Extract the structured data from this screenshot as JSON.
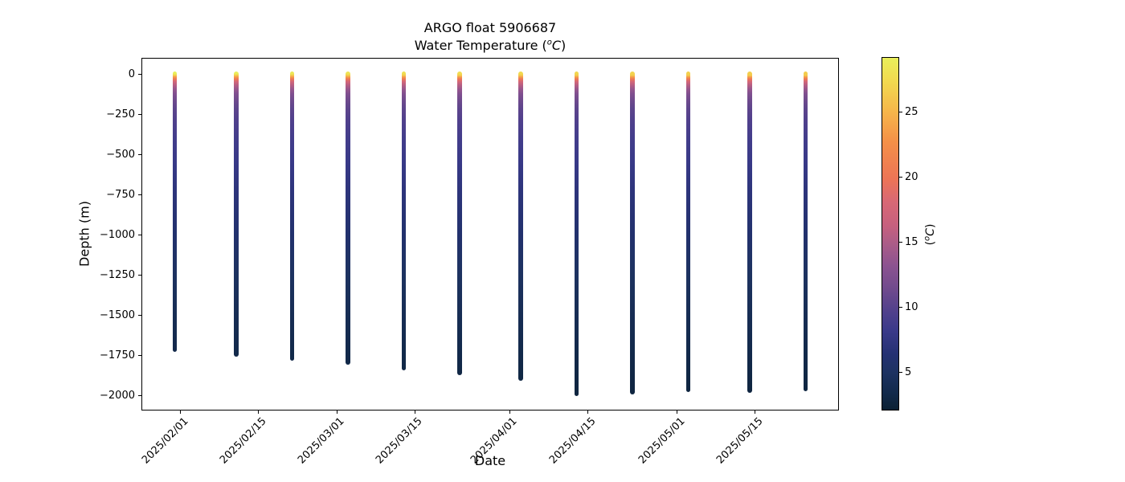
{
  "figure": {
    "title_line1": "ARGO float 5906687",
    "title_line2": {
      "prefix": "Water Temperature (",
      "sup": "o",
      "unit": "C",
      "close": ")"
    },
    "xlabel": "Date",
    "ylabel": "Depth (m)",
    "colorbar_label": {
      "prefix": "(",
      "sup": "o",
      "unit": "C",
      "close": ")"
    }
  },
  "chart_data": {
    "type": "scatter",
    "title": "ARGO float 5906687",
    "subtitle": "Water Temperature (°C)",
    "xlabel": "Date",
    "ylabel": "Depth (m)",
    "grid": false,
    "legend": "colorbar-right",
    "xlim": [
      "2025/01/25",
      "2025/05/30"
    ],
    "ylim": [
      -2095,
      100
    ],
    "x_ticks": [
      "2025/02/01",
      "2025/02/15",
      "2025/03/01",
      "2025/03/15",
      "2025/04/01",
      "2025/04/15",
      "2025/05/01",
      "2025/05/15"
    ],
    "y_ticks": {
      "values": [
        0,
        -250,
        -500,
        -750,
        -1000,
        -1250,
        -1500,
        -1750,
        -2000
      ],
      "labels": [
        "0",
        "−250",
        "−500",
        "−750",
        "−1000",
        "−1250",
        "−1500",
        "−1750",
        "−2000"
      ]
    },
    "colorbar": {
      "label": "(°C)",
      "vmin": 2.1,
      "vmax": 29.2,
      "ticks": [
        5,
        10,
        15,
        20,
        25
      ],
      "colormap": "thermal",
      "stops": [
        {
          "t": 0.0,
          "color": "#e9ef5b"
        },
        {
          "t": 0.068,
          "color": "#f2d94f"
        },
        {
          "t": 0.157,
          "color": "#f6b44a"
        },
        {
          "t": 0.239,
          "color": "#f49048"
        },
        {
          "t": 0.345,
          "color": "#ec7456"
        },
        {
          "t": 0.409,
          "color": "#d86875"
        },
        {
          "t": 0.477,
          "color": "#c6607e"
        },
        {
          "t": 0.53,
          "color": "#aa5c88"
        },
        {
          "t": 0.591,
          "color": "#8c5390"
        },
        {
          "t": 0.659,
          "color": "#6f4a8d"
        },
        {
          "t": 0.718,
          "color": "#52418c"
        },
        {
          "t": 0.773,
          "color": "#3b3a8a"
        },
        {
          "t": 0.841,
          "color": "#253173"
        },
        {
          "t": 0.895,
          "color": "#1d3261"
        },
        {
          "t": 0.955,
          "color": "#12294a"
        },
        {
          "t": 1.0,
          "color": "#0c2134"
        }
      ]
    },
    "profiles": [
      {
        "date": "2025/01/31",
        "surface_temp_c": 29.2,
        "max_depth_m": -1715
      },
      {
        "date": "2025/02/11",
        "surface_temp_c": 29.0,
        "max_depth_m": -1745
      },
      {
        "date": "2025/02/21",
        "surface_temp_c": 28.6,
        "max_depth_m": -1770
      },
      {
        "date": "2025/03/03",
        "surface_temp_c": 28.2,
        "max_depth_m": -1795
      },
      {
        "date": "2025/03/13",
        "surface_temp_c": 27.9,
        "max_depth_m": -1830
      },
      {
        "date": "2025/03/23",
        "surface_temp_c": 27.6,
        "max_depth_m": -1860
      },
      {
        "date": "2025/04/03",
        "surface_temp_c": 27.4,
        "max_depth_m": -1895
      },
      {
        "date": "2025/04/13",
        "surface_temp_c": 27.2,
        "max_depth_m": -1990
      },
      {
        "date": "2025/04/23",
        "surface_temp_c": 27.0,
        "max_depth_m": -1980
      },
      {
        "date": "2025/05/03",
        "surface_temp_c": 26.8,
        "max_depth_m": -1965
      },
      {
        "date": "2025/05/14",
        "surface_temp_c": 26.6,
        "max_depth_m": -1970
      },
      {
        "date": "2025/05/24",
        "surface_temp_c": 26.5,
        "max_depth_m": -1960
      }
    ],
    "temperature_vs_depth": [
      {
        "depth_m": 0,
        "temp_c": 28.0
      },
      {
        "depth_m": -10,
        "temp_c": 26.5
      },
      {
        "depth_m": -20,
        "temp_c": 23.5
      },
      {
        "depth_m": -32,
        "temp_c": 20.5
      },
      {
        "depth_m": -48,
        "temp_c": 17.8
      },
      {
        "depth_m": -70,
        "temp_c": 15.5
      },
      {
        "depth_m": -95,
        "temp_c": 13.8
      },
      {
        "depth_m": -125,
        "temp_c": 12.4
      },
      {
        "depth_m": -165,
        "temp_c": 11.3
      },
      {
        "depth_m": -215,
        "temp_c": 10.4
      },
      {
        "depth_m": -290,
        "temp_c": 9.6
      },
      {
        "depth_m": -400,
        "temp_c": 8.8
      },
      {
        "depth_m": -550,
        "temp_c": 8.0
      },
      {
        "depth_m": -750,
        "temp_c": 7.0
      },
      {
        "depth_m": -1000,
        "temp_c": 5.9
      },
      {
        "depth_m": -1250,
        "temp_c": 4.9
      },
      {
        "depth_m": -1500,
        "temp_c": 4.0
      },
      {
        "depth_m": -1750,
        "temp_c": 3.3
      },
      {
        "depth_m": -2000,
        "temp_c": 2.7
      }
    ]
  }
}
